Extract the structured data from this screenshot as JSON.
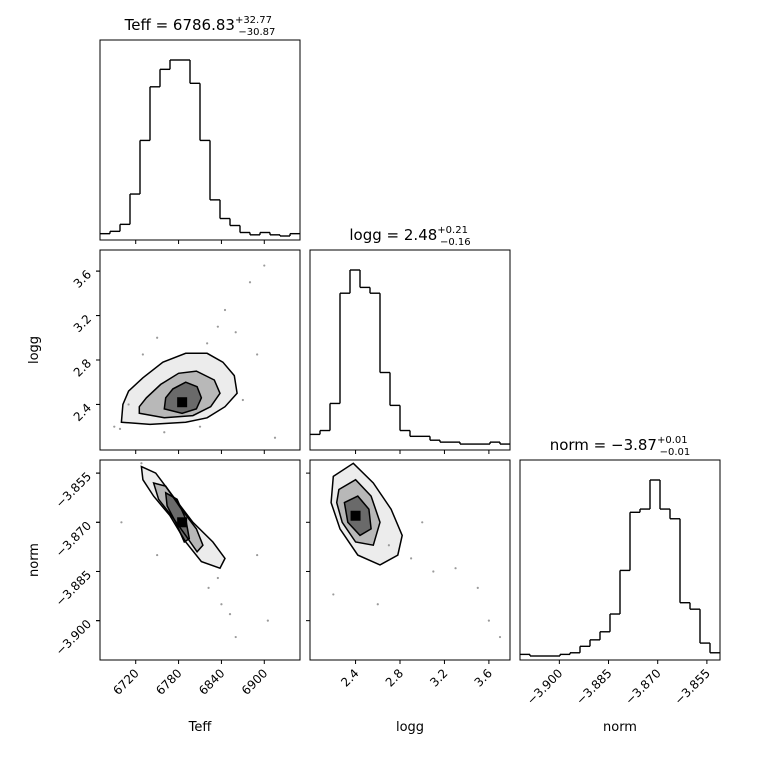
{
  "chart_data": {
    "type": "corner",
    "parameters": [
      {
        "name": "Teff",
        "label": "Teff",
        "title": {
          "prefix": "Teff = ",
          "value": "6786.83",
          "plus": "+32.77",
          "minus": "−30.87"
        },
        "range": [
          6670,
          6950
        ],
        "ticks": [
          6720,
          6780,
          6840,
          6900
        ],
        "tick_labels": [
          "6720",
          "6780",
          "6840",
          "6900"
        ],
        "hist": [
          2,
          4,
          10,
          36,
          82,
          128,
          143,
          151,
          151,
          131,
          82,
          31,
          15,
          9,
          3,
          1,
          3,
          1,
          0,
          2
        ]
      },
      {
        "name": "logg",
        "label": "logg",
        "title": {
          "prefix": "logg = ",
          "value": "2.48",
          "plus": "+0.21",
          "minus": "−0.16"
        },
        "range": [
          1.99,
          3.79
        ],
        "ticks": [
          2.4,
          2.8,
          3.2,
          3.6
        ],
        "tick_labels": [
          "2.4",
          "2.8",
          "3.2",
          "3.6"
        ],
        "hist": [
          6,
          8,
          22,
          79,
          91,
          82,
          79,
          38,
          21,
          8,
          5,
          5,
          3,
          2,
          2,
          1,
          1,
          1,
          2,
          1
        ]
      },
      {
        "name": "norm",
        "label": "norm",
        "title": {
          "prefix": "norm = ",
          "value": "−3.87",
          "plus": "+0.01",
          "minus": "−0.01"
        },
        "range": [
          -3.912,
          -3.851
        ],
        "ticks": [
          -3.9,
          -3.885,
          -3.87,
          -3.855
        ],
        "tick_labels": [
          "−3.900",
          "−3.885",
          "−3.870",
          "−3.855"
        ],
        "hist": [
          1,
          0,
          0,
          0,
          1,
          2,
          6,
          10,
          15,
          26,
          53,
          89,
          91,
          109,
          91,
          85,
          33,
          29,
          8,
          2
        ]
      }
    ],
    "pairs": [
      {
        "x": "Teff",
        "y": "logg",
        "max": [
          6785,
          2.42
        ],
        "contours": [
          [
            [
              6700,
              2.24
            ],
            [
              6740,
              2.22
            ],
            [
              6790,
              2.24
            ],
            [
              6820,
              2.28
            ],
            [
              6845,
              2.38
            ],
            [
              6862,
              2.5
            ],
            [
              6858,
              2.66
            ],
            [
              6842,
              2.78
            ],
            [
              6820,
              2.86
            ],
            [
              6790,
              2.86
            ],
            [
              6758,
              2.78
            ],
            [
              6730,
              2.64
            ],
            [
              6710,
              2.52
            ],
            [
              6702,
              2.4
            ]
          ],
          [
            [
              6725,
              2.32
            ],
            [
              6760,
              2.28
            ],
            [
              6800,
              2.3
            ],
            [
              6825,
              2.38
            ],
            [
              6838,
              2.5
            ],
            [
              6830,
              2.62
            ],
            [
              6805,
              2.7
            ],
            [
              6780,
              2.68
            ],
            [
              6755,
              2.58
            ],
            [
              6735,
              2.46
            ],
            [
              6725,
              2.38
            ]
          ],
          [
            [
              6760,
              2.36
            ],
            [
              6785,
              2.32
            ],
            [
              6805,
              2.36
            ],
            [
              6812,
              2.46
            ],
            [
              6806,
              2.56
            ],
            [
              6790,
              2.6
            ],
            [
              6772,
              2.54
            ],
            [
              6762,
              2.46
            ]
          ]
        ],
        "points": [
          [
            6690,
            2.2
          ],
          [
            6698,
            2.18
          ],
          [
            6760,
            2.15
          ],
          [
            6810,
            2.2
          ],
          [
            6870,
            2.44
          ],
          [
            6890,
            2.85
          ],
          [
            6860,
            3.05
          ],
          [
            6845,
            3.25
          ],
          [
            6900,
            3.65
          ],
          [
            6880,
            3.5
          ],
          [
            6750,
            3.0
          ],
          [
            6710,
            2.4
          ],
          [
            6915,
            2.1
          ],
          [
            6835,
            3.1
          ],
          [
            6820,
            2.95
          ],
          [
            6730,
            2.85
          ]
        ]
      },
      {
        "x": "Teff",
        "y": "norm",
        "max": [
          6785,
          -3.87
        ],
        "contours": [
          [
            [
              6728,
              -3.853
            ],
            [
              6748,
              -3.855
            ],
            [
              6772,
              -3.862
            ],
            [
              6800,
              -3.87
            ],
            [
              6828,
              -3.876
            ],
            [
              6845,
              -3.881
            ],
            [
              6838,
              -3.884
            ],
            [
              6812,
              -3.882
            ],
            [
              6790,
              -3.876
            ],
            [
              6768,
              -3.868
            ],
            [
              6745,
              -3.862
            ],
            [
              6730,
              -3.857
            ]
          ],
          [
            [
              6745,
              -3.858
            ],
            [
              6762,
              -3.859
            ],
            [
              6784,
              -3.866
            ],
            [
              6805,
              -3.872
            ],
            [
              6814,
              -3.877
            ],
            [
              6806,
              -3.879
            ],
            [
              6790,
              -3.874
            ],
            [
              6770,
              -3.868
            ],
            [
              6752,
              -3.863
            ]
          ],
          [
            [
              6762,
              -3.861
            ],
            [
              6778,
              -3.863
            ],
            [
              6790,
              -3.869
            ],
            [
              6795,
              -3.875
            ],
            [
              6788,
              -3.876
            ],
            [
              6776,
              -3.87
            ],
            [
              6764,
              -3.865
            ]
          ]
        ],
        "points": [
          [
            6728,
            -3.852
          ],
          [
            6822,
            -3.89
          ],
          [
            6840,
            -3.895
          ],
          [
            6852,
            -3.898
          ],
          [
            6860,
            -3.905
          ],
          [
            6905,
            -3.9
          ],
          [
            6835,
            -3.887
          ],
          [
            6890,
            -3.88
          ],
          [
            6750,
            -3.88
          ],
          [
            6700,
            -3.87
          ]
        ]
      },
      {
        "x": "logg",
        "y": "norm",
        "max": [
          2.4,
          -3.868
        ],
        "contours": [
          [
            [
              2.2,
              -3.856
            ],
            [
              2.38,
              -3.852
            ],
            [
              2.56,
              -3.858
            ],
            [
              2.72,
              -3.866
            ],
            [
              2.82,
              -3.874
            ],
            [
              2.78,
              -3.88
            ],
            [
              2.62,
              -3.883
            ],
            [
              2.42,
              -3.88
            ],
            [
              2.26,
              -3.872
            ],
            [
              2.18,
              -3.864
            ]
          ],
          [
            [
              2.25,
              -3.86
            ],
            [
              2.4,
              -3.857
            ],
            [
              2.54,
              -3.862
            ],
            [
              2.62,
              -3.87
            ],
            [
              2.56,
              -3.877
            ],
            [
              2.4,
              -3.876
            ],
            [
              2.28,
              -3.87
            ],
            [
              2.23,
              -3.864
            ]
          ],
          [
            [
              2.3,
              -3.864
            ],
            [
              2.42,
              -3.862
            ],
            [
              2.52,
              -3.866
            ],
            [
              2.54,
              -3.872
            ],
            [
              2.44,
              -3.874
            ],
            [
              2.33,
              -3.87
            ]
          ]
        ],
        "points": [
          [
            2.7,
            -3.877
          ],
          [
            2.9,
            -3.881
          ],
          [
            3.1,
            -3.885
          ],
          [
            3.3,
            -3.884
          ],
          [
            3.6,
            -3.9
          ],
          [
            3.7,
            -3.905
          ],
          [
            3.5,
            -3.89
          ],
          [
            2.6,
            -3.895
          ],
          [
            2.2,
            -3.892
          ],
          [
            3.0,
            -3.87
          ]
        ]
      }
    ]
  }
}
